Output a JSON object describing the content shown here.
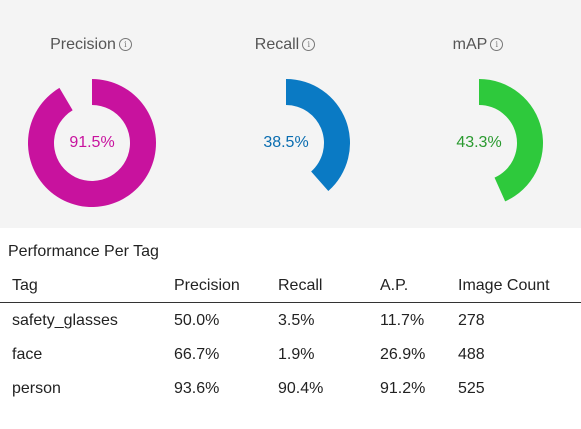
{
  "metrics": [
    {
      "label": "Precision",
      "value_text": "91.5%",
      "fraction": 0.915,
      "color": "#c8129e",
      "text_color": "#c8129e"
    },
    {
      "label": "Recall",
      "value_text": "38.5%",
      "fraction": 0.385,
      "color": "#0a7ac4",
      "text_color": "#0a6db0"
    },
    {
      "label": "mAP",
      "value_text": "43.3%",
      "fraction": 0.433,
      "color": "#2ec93c",
      "text_color": "#2a9a2f"
    }
  ],
  "info_icon": "info-icon",
  "performance": {
    "title": "Performance Per Tag",
    "columns": [
      "Tag",
      "Precision",
      "Recall",
      "A.P.",
      "Image Count"
    ],
    "rows": [
      [
        "safety_glasses",
        "50.0%",
        "3.5%",
        "11.7%",
        "278"
      ],
      [
        "face",
        "66.7%",
        "1.9%",
        "26.9%",
        "488"
      ],
      [
        "person",
        "93.6%",
        "90.4%",
        "91.2%",
        "525"
      ]
    ]
  }
}
